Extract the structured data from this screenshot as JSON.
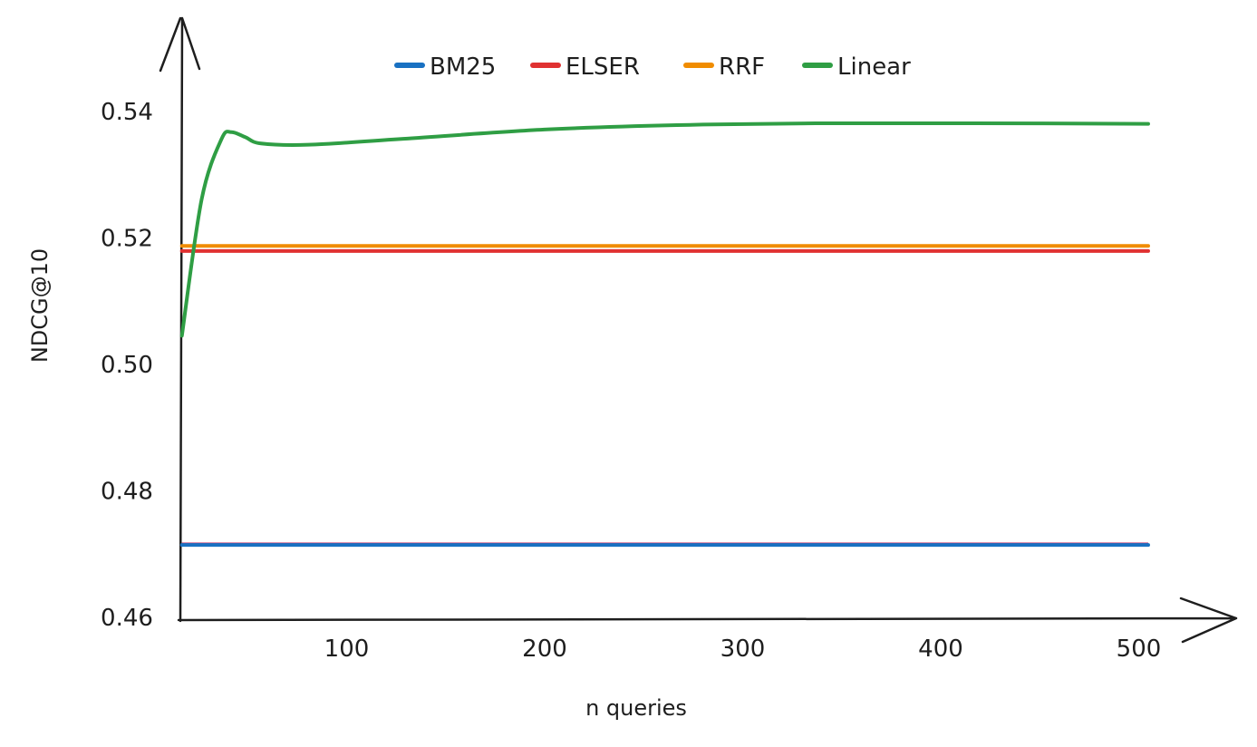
{
  "chart_data": {
    "type": "line",
    "title": "",
    "xlabel": "n queries",
    "ylabel": "NDCG@10",
    "xlim": [
      20,
      510
    ],
    "ylim": [
      0.46,
      0.55
    ],
    "xticks": [
      100,
      200,
      300,
      400,
      500
    ],
    "yticks": [
      0.46,
      0.48,
      0.5,
      0.52,
      0.54
    ],
    "ytick_labels": [
      "0.46",
      "0.48",
      "0.50",
      "0.52",
      "0.54"
    ],
    "xtick_labels": [
      "100",
      "200",
      "300",
      "400",
      "500"
    ],
    "grid": false,
    "legend_position": "top",
    "series": [
      {
        "name": "BM25",
        "color": "#1971c2",
        "x": [
          20,
          508
        ],
        "y": [
          0.4713,
          0.4713
        ]
      },
      {
        "name": "ELSER",
        "color": "#e03131",
        "x": [
          20,
          508
        ],
        "y": [
          0.5178,
          0.5178
        ]
      },
      {
        "name": "RRF",
        "color": "#f08c00",
        "x": [
          20,
          508
        ],
        "y": [
          0.5186,
          0.5186
        ]
      },
      {
        "name": "Linear",
        "color": "#2f9e44",
        "x": [
          20,
          30,
          40,
          45,
          52,
          60,
          84,
          130,
          203,
          270,
          340,
          420,
          508
        ],
        "y": [
          0.5044,
          0.526,
          0.5355,
          0.5366,
          0.5358,
          0.5348,
          0.5346,
          0.5355,
          0.537,
          0.5377,
          0.538,
          0.538,
          0.5379
        ]
      }
    ]
  }
}
